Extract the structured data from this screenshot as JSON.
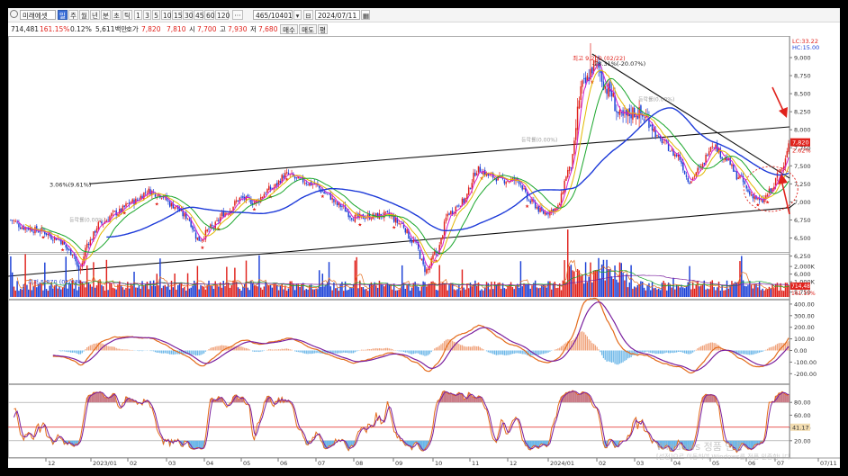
{
  "toolbar": {
    "stock_name": "미래에셋증",
    "period_tabs": [
      "일",
      "주",
      "월",
      "년",
      "분",
      "초",
      "틱"
    ],
    "active_period": "일",
    "interval_buttons": [
      "1",
      "3",
      "5",
      "10",
      "15",
      "30",
      "45",
      "60",
      "120"
    ],
    "more_btn": "···",
    "count_input": "465/10401",
    "date_input": "2024/07/11"
  },
  "quote": {
    "volume": "714,481",
    "change_pct": "161.15%",
    "rate": "0.12%",
    "amount": "5,611백만",
    "bid_label": "호가",
    "bid1": "7,820",
    "bid2": "7,810",
    "open_label": "시",
    "open": "7,700",
    "high_label": "고",
    "high": "7,930",
    "low_label": "저",
    "low": "7,680",
    "buy_btn": "매수",
    "sell_btn": "매도",
    "flat_btn": "평"
  },
  "price_panel": {
    "lc": "LC:33.22",
    "hc": "HC:15.00",
    "price_axis": [
      "9,000",
      "8,750",
      "8,500",
      "8,250",
      "8,000",
      "7,750",
      "7,500",
      "7,250",
      "7,000",
      "6,750",
      "6,500",
      "6,250",
      "6,000",
      "5,750"
    ],
    "current_price": "7,820",
    "current_pct": "2.62%",
    "high_annotation": "최고 9,200 (02/22)",
    "low_annotation": "최저 5,870 (01/03)",
    "pct_labels": [
      "3.06%(9.61%)",
      "-28.31%(-20.07%)"
    ],
    "faint_labels": [
      "등락률(0.00%)",
      "등락률(0.00%)",
      "등락률(0.00%)"
    ]
  },
  "volume_panel": {
    "axis": [
      "2,000K",
      "1,000K"
    ],
    "current_vol": "714,481",
    "current_vol_pct": "161.15%"
  },
  "macd_panel": {
    "axis": [
      "400.00",
      "300.00",
      "200.00",
      "100.00",
      "0.00",
      "-100.00",
      "-200.00"
    ]
  },
  "stoch_panel": {
    "axis": [
      "80.00",
      "60.00",
      "40.00",
      "20.00"
    ],
    "current": "41.17"
  },
  "x_axis": [
    "12",
    "2023/01",
    "02",
    "03",
    "04",
    "05",
    "06",
    "07",
    "08",
    "09",
    "10",
    "11",
    "12",
    "2024/01",
    "02",
    "03",
    "04",
    "05",
    "06",
    "07",
    "07/11"
  ],
  "watermark": {
    "line1": "Windows 정품 인증",
    "line2": "[설정]으로 이동하여 Windows를 정품 인증합니다."
  },
  "colors": {
    "up": "#e0221c",
    "down": "#1a3fd6",
    "ma5": "#d11ed1",
    "ma10": "#e3b800",
    "ma20": "#1aa62b",
    "ma60": "#1e3bd9",
    "macd": "#e46a19",
    "signal": "#7a1f9e"
  }
}
